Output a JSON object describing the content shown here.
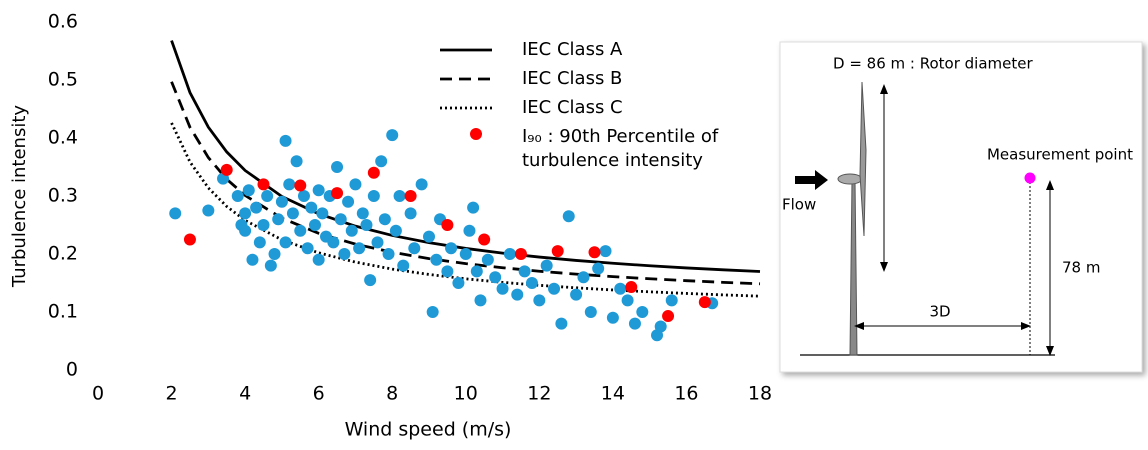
{
  "chart_data": {
    "type": "scatter",
    "x_label": "Wind speed (m/s)",
    "y_label": "Turbulence intensity",
    "xlim": [
      0,
      18
    ],
    "xticks": [
      0,
      2,
      4,
      6,
      8,
      10,
      12,
      14,
      16,
      18
    ],
    "ylim": [
      0,
      0.6
    ],
    "yticks": [
      0,
      0.1,
      0.2,
      0.3,
      0.4,
      0.5,
      0.6
    ],
    "x": [
      2,
      2.5,
      3,
      3.5,
      4,
      5,
      6,
      7,
      8,
      9,
      10,
      11,
      12,
      13,
      14,
      15,
      16,
      17,
      18
    ],
    "series": [
      {
        "name": "IEC Class A",
        "type": "line",
        "dash": "solid",
        "color": "#000000",
        "values": [
          0.568,
          0.4784,
          0.4187,
          0.376,
          0.344,
          0.2992,
          0.2693,
          0.248,
          0.232,
          0.2196,
          0.2096,
          0.2015,
          0.1947,
          0.1889,
          0.184,
          0.1797,
          0.176,
          0.1727,
          0.1698
        ]
      },
      {
        "name": "IEC Class B",
        "type": "line",
        "dash": "dashed",
        "color": "#000000",
        "values": [
          0.497,
          0.4186,
          0.3663,
          0.329,
          0.301,
          0.2618,
          0.2357,
          0.217,
          0.203,
          0.1921,
          0.1834,
          0.1763,
          0.1703,
          0.1653,
          0.161,
          0.1573,
          0.154,
          0.1511,
          0.1486
        ]
      },
      {
        "name": "IEC Class C",
        "type": "line",
        "dash": "dotted",
        "color": "#000000",
        "values": [
          0.426,
          0.3588,
          0.314,
          0.282,
          0.258,
          0.2244,
          0.202,
          0.186,
          0.174,
          0.1647,
          0.1572,
          0.1511,
          0.146,
          0.1417,
          0.138,
          0.1348,
          0.132,
          0.1295,
          0.1273
        ]
      },
      {
        "type": "scatter",
        "color": "#1f9ad6",
        "x": [
          2.1,
          3,
          3.4,
          3.8,
          3.9,
          4,
          4,
          4.1,
          4.2,
          4.3,
          4.4,
          4.5,
          4.6,
          4.7,
          4.8,
          4.9,
          5,
          5.1,
          5.1,
          5.2,
          5.3,
          5.4,
          5.5,
          5.6,
          5.7,
          5.8,
          5.9,
          6,
          6,
          6.1,
          6.2,
          6.3,
          6.4,
          6.5,
          6.6,
          6.7,
          6.8,
          6.9,
          7,
          7.1,
          7.2,
          7.3,
          7.4,
          7.5,
          7.6,
          7.7,
          7.8,
          7.9,
          8,
          8.1,
          8.2,
          8.3,
          8.5,
          8.6,
          8.8,
          9,
          9.1,
          9.2,
          9.3,
          9.5,
          9.6,
          9.8,
          10,
          10.1,
          10.2,
          10.3,
          10.4,
          10.6,
          10.8,
          11,
          11.2,
          11.4,
          11.6,
          11.8,
          12,
          12.2,
          12.4,
          12.6,
          12.8,
          13,
          13.2,
          13.4,
          13.6,
          13.8,
          14,
          14.2,
          14.4,
          14.6,
          14.8,
          15.2,
          15.3,
          15.6,
          16.7
        ],
        "values": [
          0.27,
          0.275,
          0.33,
          0.3,
          0.25,
          0.27,
          0.24,
          0.31,
          0.19,
          0.28,
          0.22,
          0.25,
          0.3,
          0.18,
          0.2,
          0.26,
          0.29,
          0.395,
          0.22,
          0.32,
          0.27,
          0.36,
          0.24,
          0.3,
          0.21,
          0.28,
          0.25,
          0.31,
          0.19,
          0.27,
          0.23,
          0.3,
          0.22,
          0.35,
          0.26,
          0.2,
          0.29,
          0.24,
          0.32,
          0.21,
          0.27,
          0.25,
          0.155,
          0.3,
          0.22,
          0.36,
          0.26,
          0.2,
          0.405,
          0.24,
          0.3,
          0.18,
          0.27,
          0.21,
          0.32,
          0.23,
          0.1,
          0.19,
          0.26,
          0.17,
          0.21,
          0.15,
          0.2,
          0.24,
          0.28,
          0.17,
          0.12,
          0.19,
          0.16,
          0.14,
          0.2,
          0.13,
          0.17,
          0.15,
          0.12,
          0.18,
          0.14,
          0.08,
          0.265,
          0.13,
          0.16,
          0.1,
          0.175,
          0.205,
          0.09,
          0.14,
          0.12,
          0.08,
          0.1,
          0.06,
          0.075,
          0.12,
          0.115
        ]
      },
      {
        "name": "I₉₀ : 90th Percentile of turbulence intensity",
        "type": "scatter",
        "color": "#ff0000",
        "x": [
          2.5,
          3.5,
          4.5,
          5.5,
          6.5,
          7.5,
          8.5,
          9.5,
          10.5,
          11.5,
          12.5,
          13.5,
          14.5,
          15.5,
          16.5
        ],
        "values": [
          0.225,
          0.345,
          0.32,
          0.318,
          0.305,
          0.34,
          0.3,
          0.25,
          0.225,
          0.2,
          0.205,
          0.203,
          0.143,
          0.093,
          0.117
        ]
      }
    ]
  },
  "diagram": {
    "rotor_label": "D = 86 m : Rotor diameter",
    "measurement_label": "Measurement point",
    "flow_label": "Flow",
    "height_label": "78 m",
    "distance_label": "3D"
  }
}
